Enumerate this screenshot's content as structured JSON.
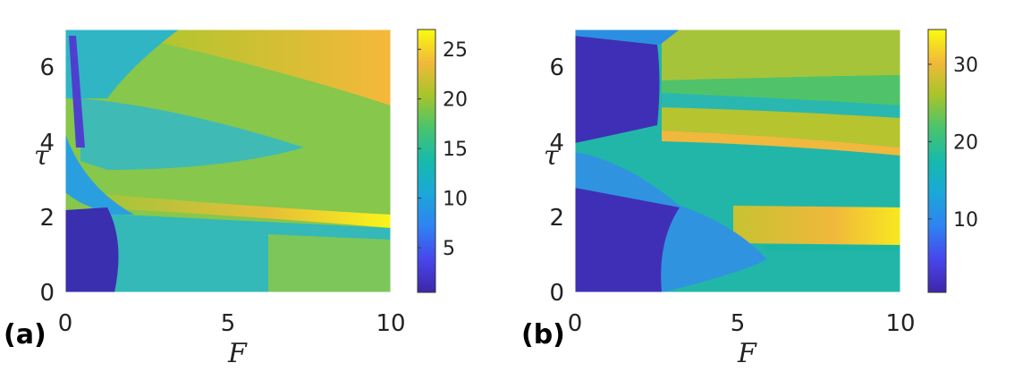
{
  "chart_data": [
    {
      "type": "heatmap",
      "panel_label": "(a)",
      "xlabel": "F",
      "ylabel": "τ",
      "xlim": [
        0,
        10
      ],
      "ylim": [
        0,
        7
      ],
      "x_ticks": [
        "0",
        "5",
        "10"
      ],
      "y_ticks": [
        "0",
        "2",
        "4",
        "6"
      ],
      "colorbar": {
        "range": [
          0.5,
          27
        ],
        "ticks": [
          "5",
          "10",
          "15",
          "20",
          "25"
        ],
        "colormap": "parula"
      },
      "regions": [
        {
          "x": [
            0,
            10
          ],
          "y": [
            0,
            7
          ],
          "value": 17
        },
        {
          "x": [
            0,
            10
          ],
          "y": [
            1.9,
            3.2
          ],
          "value": 21
        },
        {
          "x": [
            3,
            10
          ],
          "y": [
            4.8,
            6.3
          ],
          "value": 22
        },
        {
          "x": [
            0,
            6
          ],
          "y": [
            3.3,
            4.6
          ],
          "value": 15
        },
        {
          "x": [
            0,
            10
          ],
          "y": [
            0,
            1.9
          ],
          "value": 13
        },
        {
          "x": [
            0,
            1.8
          ],
          "y": [
            0,
            2.0
          ],
          "value": 2
        },
        {
          "x": [
            0,
            0.35
          ],
          "y": [
            2.0,
            7.0
          ],
          "value": 4
        }
      ]
    },
    {
      "type": "heatmap",
      "panel_label": "(b)",
      "xlabel": "F",
      "ylabel": "τ",
      "xlim": [
        0,
        10
      ],
      "ylim": [
        0,
        7
      ],
      "x_ticks": [
        "0",
        "5",
        "10"
      ],
      "y_ticks": [
        "0",
        "2",
        "4",
        "6"
      ],
      "colorbar": {
        "range": [
          0.5,
          34.5
        ],
        "ticks": [
          "10",
          "20",
          "30"
        ],
        "colormap": "parula"
      },
      "regions": [
        {
          "x": [
            0,
            10
          ],
          "y": [
            0,
            7
          ],
          "value": 20
        },
        {
          "x": [
            3,
            10
          ],
          "y": [
            5.0,
            6.8
          ],
          "value": 23
        },
        {
          "x": [
            3,
            10
          ],
          "y": [
            3.9,
            4.5
          ],
          "value": 27
        },
        {
          "x": [
            5.6,
            10
          ],
          "y": [
            1.3,
            2.3
          ],
          "value": 29
        },
        {
          "x": [
            0,
            5.8
          ],
          "y": [
            0,
            2.3
          ],
          "value": 9
        },
        {
          "x": [
            0,
            2.6
          ],
          "y": [
            0,
            3.2
          ],
          "value": 3
        },
        {
          "x": [
            0,
            2.6
          ],
          "y": [
            4.2,
            7.0
          ],
          "value": 3
        }
      ]
    }
  ]
}
